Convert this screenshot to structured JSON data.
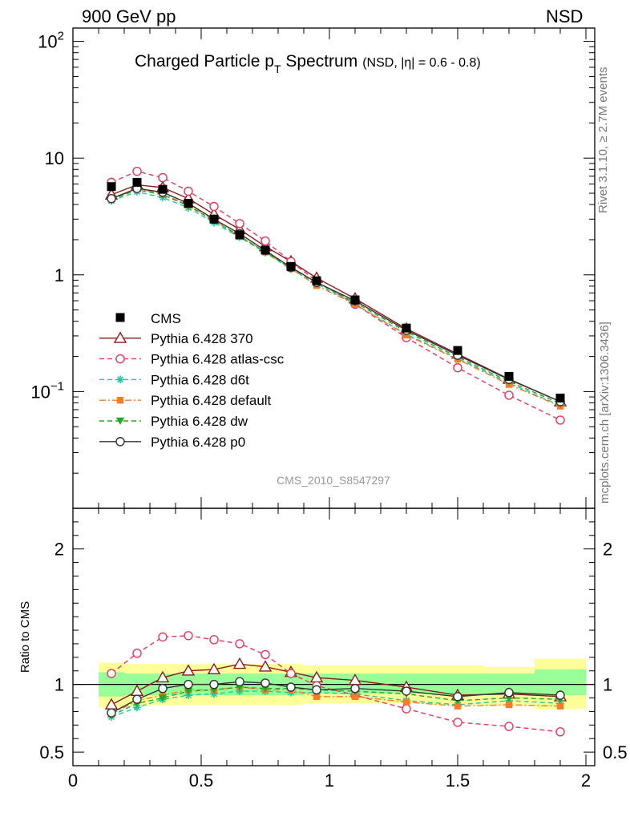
{
  "header": {
    "left": "900 GeV pp",
    "right": "NSD"
  },
  "side": {
    "rivet": "Rivet 3.1.10, ≥ 2.7M events",
    "mcplots": "mcplots.cern.ch [arXiv:1306.3436]"
  },
  "chart_data": [
    {
      "type": "line",
      "title": "Charged Particle p",
      "title_sub": "T",
      "title_rest": " Spectrum",
      "title_small": "(NSD, |η| = 0.6 - 0.8)",
      "watermark": "CMS_2010_S8547297",
      "ylim": [
        0.01,
        130
      ],
      "xlim": [
        0,
        2
      ],
      "yscale": "log",
      "y_ticks": [
        {
          "v": 100,
          "mant": "10",
          "exp": "2"
        },
        {
          "v": 10,
          "mant": "10",
          "exp": ""
        },
        {
          "v": 1,
          "mant": "1",
          "exp": ""
        },
        {
          "v": 0.1,
          "mant": "10",
          "exp": "−1"
        }
      ],
      "legend_position": "bottom-left",
      "x": [
        0.15,
        0.25,
        0.35,
        0.45,
        0.55,
        0.65,
        0.75,
        0.85,
        0.95,
        1.1,
        1.3,
        1.5,
        1.7,
        1.9
      ],
      "data": {
        "name": "CMS",
        "values": [
          5.7,
          6.2,
          5.4,
          4.1,
          3.0,
          2.2,
          1.63,
          1.18,
          0.89,
          0.61,
          0.35,
          0.225,
          0.135,
          0.088
        ]
      },
      "series": [
        {
          "name": "Pythia 6.428 370",
          "color": "#8b1a1a",
          "marker": "open-triangle",
          "dash": "",
          "values": [
            4.85,
            5.9,
            5.6,
            4.5,
            3.3,
            2.45,
            1.75,
            1.3,
            0.94,
            0.625,
            0.345,
            0.21,
            0.128,
            0.082
          ]
        },
        {
          "name": "Pythia 6.428 atlas-csc",
          "color": "#e8365f",
          "marker": "open-circle",
          "dash": "6,4",
          "values": [
            6.2,
            7.7,
            6.8,
            5.2,
            3.85,
            2.75,
            1.95,
            1.3,
            0.88,
            0.56,
            0.29,
            0.16,
            0.093,
            0.057
          ]
        },
        {
          "name": "Pythia 6.428 d6t",
          "color": "#1ec8a0",
          "marker": "star",
          "dash": "6,4",
          "values": [
            4.3,
            5.15,
            4.6,
            3.75,
            2.8,
            2.1,
            1.55,
            1.12,
            0.84,
            0.56,
            0.31,
            0.192,
            0.118,
            0.076
          ]
        },
        {
          "name": "Pythia 6.428 default",
          "color": "#f57c28",
          "marker": "filled-square",
          "dash": "8,3,2,3",
          "values": [
            4.45,
            5.45,
            4.95,
            3.95,
            2.95,
            2.15,
            1.57,
            1.13,
            0.81,
            0.56,
            0.305,
            0.189,
            0.115,
            0.075
          ]
        },
        {
          "name": "Pythia 6.428 dw",
          "color": "#22aa22",
          "marker": "filled-triangle-down",
          "dash": "6,4",
          "values": [
            4.4,
            5.35,
            4.85,
            3.9,
            2.9,
            2.15,
            1.57,
            1.15,
            0.86,
            0.58,
            0.325,
            0.198,
            0.122,
            0.079
          ]
        },
        {
          "name": "Pythia 6.428 p0",
          "color": "#333333",
          "marker": "open-circle",
          "dash": "",
          "values": [
            4.5,
            5.5,
            5.1,
            4.1,
            3.0,
            2.25,
            1.62,
            1.16,
            0.86,
            0.6,
            0.335,
            0.205,
            0.127,
            0.082
          ]
        }
      ]
    },
    {
      "type": "line",
      "ylabel": "Ratio to CMS",
      "ylim": [
        0.4,
        2.3
      ],
      "xlim": [
        0,
        2
      ],
      "x_ticks": [
        "0",
        "0.5",
        "1",
        "1.5",
        "2"
      ],
      "y_ticks": [
        "0.5",
        "1",
        "2"
      ],
      "bin_edges": [
        0.1,
        0.2,
        0.3,
        0.4,
        0.5,
        0.6,
        0.7,
        0.8,
        0.9,
        1.0,
        1.2,
        1.4,
        1.6,
        1.8,
        2.0
      ],
      "band_green": [
        [
          0.91,
          1.09
        ],
        [
          0.92,
          1.08
        ],
        [
          0.92,
          1.08
        ],
        [
          0.92,
          1.08
        ],
        [
          0.92,
          1.08
        ],
        [
          0.92,
          1.08
        ],
        [
          0.92,
          1.08
        ],
        [
          0.92,
          1.08
        ],
        [
          0.93,
          1.08
        ],
        [
          0.93,
          1.08
        ],
        [
          0.93,
          1.08
        ],
        [
          0.92,
          1.08
        ],
        [
          0.92,
          1.08
        ],
        [
          0.92,
          1.11
        ]
      ],
      "band_yellow": [
        [
          0.83,
          1.16
        ],
        [
          0.84,
          1.15
        ],
        [
          0.85,
          1.15
        ],
        [
          0.85,
          1.15
        ],
        [
          0.85,
          1.15
        ],
        [
          0.85,
          1.15
        ],
        [
          0.85,
          1.15
        ],
        [
          0.85,
          1.15
        ],
        [
          0.86,
          1.14
        ],
        [
          0.86,
          1.14
        ],
        [
          0.86,
          1.14
        ],
        [
          0.85,
          1.14
        ],
        [
          0.84,
          1.13
        ],
        [
          0.82,
          1.19
        ]
      ],
      "series_ratio": [
        {
          "name": "Pythia 6.428 370",
          "values": [
            0.85,
            0.95,
            1.05,
            1.1,
            1.11,
            1.15,
            1.13,
            1.09,
            1.05,
            1.03,
            0.98,
            0.92,
            0.93,
            0.91
          ]
        },
        {
          "name": "Pythia 6.428 atlas-csc",
          "values": [
            1.08,
            1.23,
            1.35,
            1.36,
            1.33,
            1.3,
            1.22,
            1.08,
            0.99,
            0.92,
            0.82,
            0.72,
            0.69,
            0.65
          ]
        },
        {
          "name": "Pythia 6.428 d6t",
          "values": [
            0.76,
            0.83,
            0.89,
            0.92,
            0.93,
            0.95,
            0.95,
            0.94,
            0.94,
            0.93,
            0.88,
            0.85,
            0.88,
            0.86
          ]
        },
        {
          "name": "Pythia 6.428 default",
          "values": [
            0.78,
            0.88,
            0.92,
            0.96,
            0.96,
            0.98,
            0.96,
            0.96,
            0.91,
            0.91,
            0.87,
            0.84,
            0.85,
            0.84
          ]
        },
        {
          "name": "Pythia 6.428 dw",
          "values": [
            0.77,
            0.86,
            0.9,
            0.95,
            0.96,
            0.98,
            0.97,
            0.97,
            0.96,
            0.95,
            0.93,
            0.88,
            0.9,
            0.89
          ]
        },
        {
          "name": "Pythia 6.428 p0",
          "values": [
            0.79,
            0.89,
            0.97,
            1.0,
            1.0,
            1.02,
            1.01,
            0.98,
            0.96,
            0.97,
            0.95,
            0.91,
            0.94,
            0.92
          ]
        }
      ]
    }
  ]
}
